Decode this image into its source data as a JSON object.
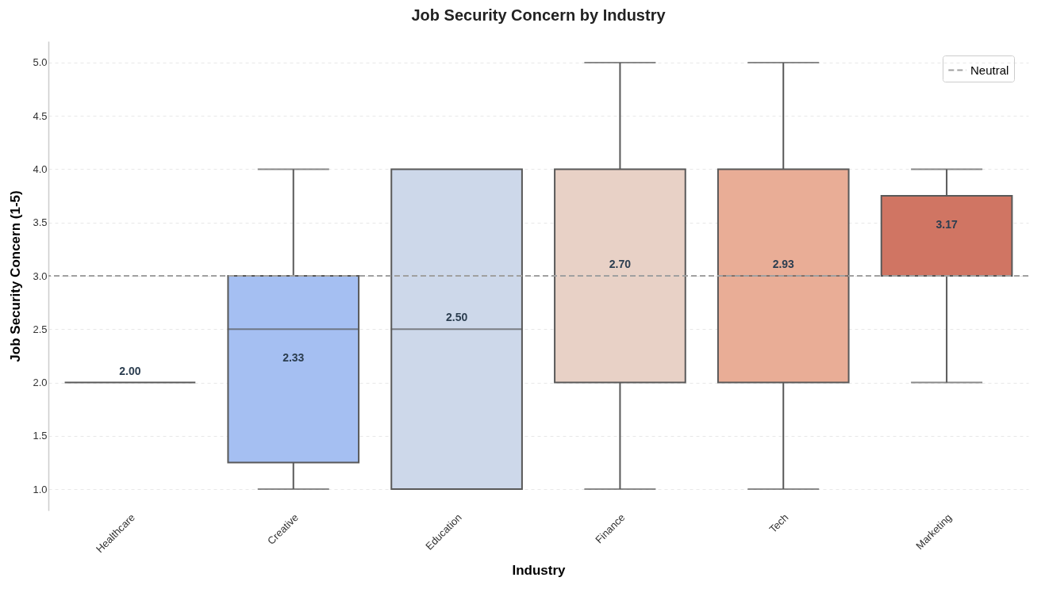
{
  "chart_data": {
    "type": "box",
    "title": "Job Security Concern by Industry",
    "xlabel": "Industry",
    "ylabel": "Job Security Concern (1-5)",
    "categories": [
      "Healthcare",
      "Creative",
      "Education",
      "Finance",
      "Tech",
      "Marketing"
    ],
    "boxes": [
      {
        "low": 2,
        "q1": 2,
        "median": 2,
        "q3": 2,
        "high": 2
      },
      {
        "low": 1,
        "q1": 1.25,
        "median": 2.5,
        "q3": 3,
        "high": 4
      },
      {
        "low": 1,
        "q1": 1,
        "median": 2.5,
        "q3": 4,
        "high": 4
      },
      {
        "low": 1,
        "q1": 2,
        "median": 2,
        "q3": 4,
        "high": 5
      },
      {
        "low": 1,
        "q1": 2,
        "median": 3,
        "q3": 4,
        "high": 5
      },
      {
        "low": 2,
        "q1": 3,
        "median": 3,
        "q3": 3.75,
        "high": 4
      }
    ],
    "annotations": [
      "2.00",
      "2.33",
      "2.50",
      "2.70",
      "2.93",
      "3.17"
    ],
    "colors": [
      "#595959",
      "#a5bff2",
      "#cdd8ea",
      "#e8d1c6",
      "#e9ad96",
      "#d07563"
    ],
    "ylim": [
      0.8,
      5.2
    ],
    "yticks": [
      {
        "value": 1,
        "label": "1.0"
      },
      {
        "value": 1.5,
        "label": "1.5"
      },
      {
        "value": 2,
        "label": "2.0"
      },
      {
        "value": 2.5,
        "label": "2.5"
      },
      {
        "value": 3,
        "label": "3.0"
      },
      {
        "value": 3.5,
        "label": "3.5"
      },
      {
        "value": 4,
        "label": "4.0"
      },
      {
        "value": 4.5,
        "label": "4.5"
      },
      {
        "value": 5,
        "label": "5.0"
      }
    ],
    "grid": "y",
    "legend": "top right",
    "ref_lines": [
      {
        "axis": "y",
        "value": 3,
        "label": "Neutral",
        "color": "#a0a0a0",
        "line_style": "dashed"
      }
    ]
  }
}
